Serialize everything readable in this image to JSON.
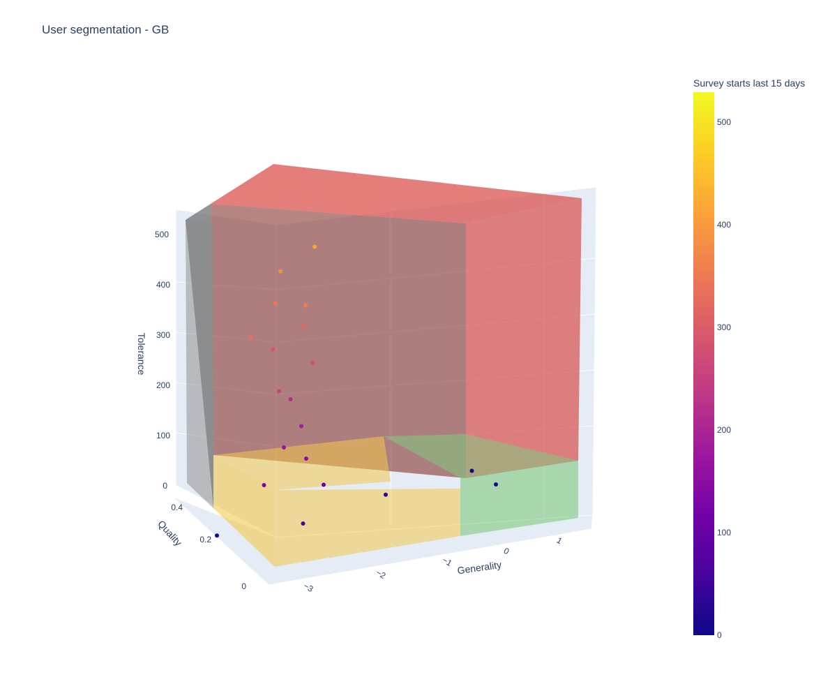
{
  "chart_data": {
    "type": "scatter",
    "title": "User segmentation - GB",
    "x_axis": {
      "label": "Generality",
      "ticks": [
        "−3",
        "−2",
        "−1",
        "0",
        "1"
      ],
      "range": [
        -3.5,
        1.6
      ]
    },
    "y_axis": {
      "label": "Quality",
      "ticks": [
        "0",
        "0.2",
        "0.4"
      ],
      "range": [
        0,
        0.45
      ]
    },
    "z_axis": {
      "label": "Tolerance",
      "ticks": [
        "0",
        "100",
        "200",
        "300",
        "400",
        "500"
      ],
      "range": [
        0,
        530
      ]
    },
    "colorbar": {
      "title": "Survey starts last 15 days",
      "ticks": [
        "0",
        "100",
        "200",
        "300",
        "400",
        "500"
      ],
      "range": [
        0,
        530
      ],
      "colorscale": [
        "#0d0887",
        "#46039f",
        "#7201a8",
        "#9c179e",
        "#bd3786",
        "#d8576b",
        "#ed7953",
        "#fb9f3a",
        "#fdca26",
        "#f0f921"
      ]
    },
    "segments": [
      {
        "color": "#d9534f",
        "region": "tolerance high"
      },
      {
        "color": "#6c6c6c",
        "region": "generality low, tolerance high"
      },
      {
        "color": "#f2c94c",
        "region": "generality low, tolerance low"
      },
      {
        "color": "#7fc97f",
        "region": "generality high, tolerance low"
      }
    ],
    "series": [
      {
        "generality": 0.8,
        "quality": 0.35,
        "tolerance": 40,
        "value": 10
      },
      {
        "generality": 1.1,
        "quality": 0.3,
        "tolerance": 20,
        "value": 8
      },
      {
        "generality": -3.3,
        "quality": 0.15,
        "tolerance": 5,
        "value": 20
      },
      {
        "generality": -2.5,
        "quality": 0.38,
        "tolerance": 300,
        "value": 340
      },
      {
        "generality": -1.7,
        "quality": 0.25,
        "tolerance": 460,
        "value": 420
      },
      {
        "generality": -2.0,
        "quality": 0.42,
        "tolerance": 400,
        "value": 390
      },
      {
        "generality": -1.9,
        "quality": 0.2,
        "tolerance": 370,
        "value": 360
      },
      {
        "generality": -2.1,
        "quality": 0.4,
        "tolerance": 350,
        "value": 350
      },
      {
        "generality": -1.8,
        "quality": 0.3,
        "tolerance": 320,
        "value": 320
      },
      {
        "generality": -2.2,
        "quality": 0.35,
        "tolerance": 280,
        "value": 290
      },
      {
        "generality": -1.6,
        "quality": 0.35,
        "tolerance": 250,
        "value": 270
      },
      {
        "generality": -2.3,
        "quality": 0.2,
        "tolerance": 230,
        "value": 250
      },
      {
        "generality": -2.0,
        "quality": 0.3,
        "tolerance": 200,
        "value": 220
      },
      {
        "generality": -1.9,
        "quality": 0.25,
        "tolerance": 160,
        "value": 190
      },
      {
        "generality": -2.1,
        "quality": 0.3,
        "tolerance": 120,
        "value": 170
      },
      {
        "generality": -1.7,
        "quality": 0.35,
        "tolerance": 90,
        "value": 150
      },
      {
        "generality": -2.4,
        "quality": 0.3,
        "tolerance": 60,
        "value": 130
      },
      {
        "generality": -1.5,
        "quality": 0.3,
        "tolerance": 50,
        "value": 110
      },
      {
        "generality": -2.0,
        "quality": 0.15,
        "tolerance": 10,
        "value": 60
      },
      {
        "generality": -0.5,
        "quality": 0.35,
        "tolerance": 15,
        "value": 25
      }
    ]
  }
}
